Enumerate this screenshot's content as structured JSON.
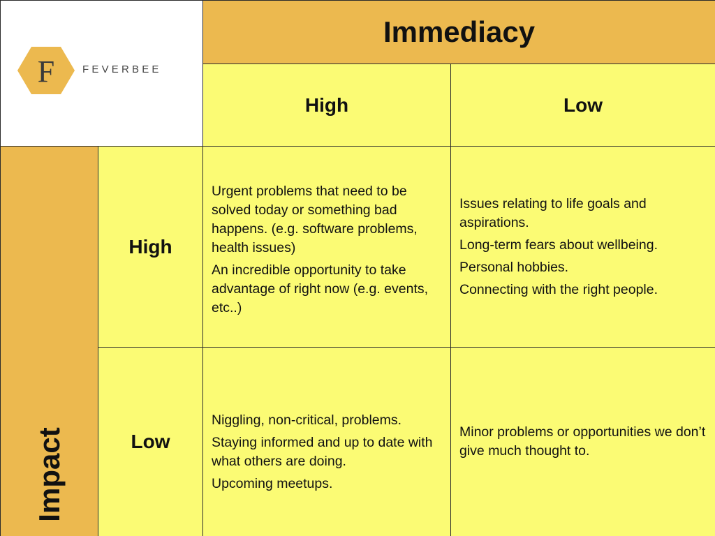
{
  "logo": {
    "letter": "F",
    "brand": "FEVERBEE",
    "icon": "hexagon-f-logo-icon",
    "hex_color": "#ecb94f"
  },
  "headers": {
    "column_axis": "Immediacy",
    "row_axis": "Impact",
    "col_high": "High",
    "col_low": "Low",
    "row_high": "High",
    "row_low": "Low"
  },
  "quadrants": {
    "high_impact_high_immediacy": [
      "Urgent problems that need to be solved today or something bad happens. (e.g. software problems, health issues)",
      "An incredible opportunity to take advantage of right now (e.g. events, etc..)"
    ],
    "high_impact_low_immediacy": [
      "Issues relating to life goals and aspirations.",
      "Long-term fears about wellbeing.",
      "Personal hobbies.",
      "Connecting with the right people."
    ],
    "low_impact_high_immediacy": [
      "Niggling, non-critical, problems.",
      "Staying informed and up to date with what others are doing.",
      "Upcoming meetups."
    ],
    "low_impact_low_immediacy": [
      "Minor problems or opportunities we don’t give much thought to."
    ]
  },
  "colors": {
    "header_orange": "#ecb94f",
    "cell_yellow": "#fbfb74",
    "border": "#2a2a2a"
  }
}
